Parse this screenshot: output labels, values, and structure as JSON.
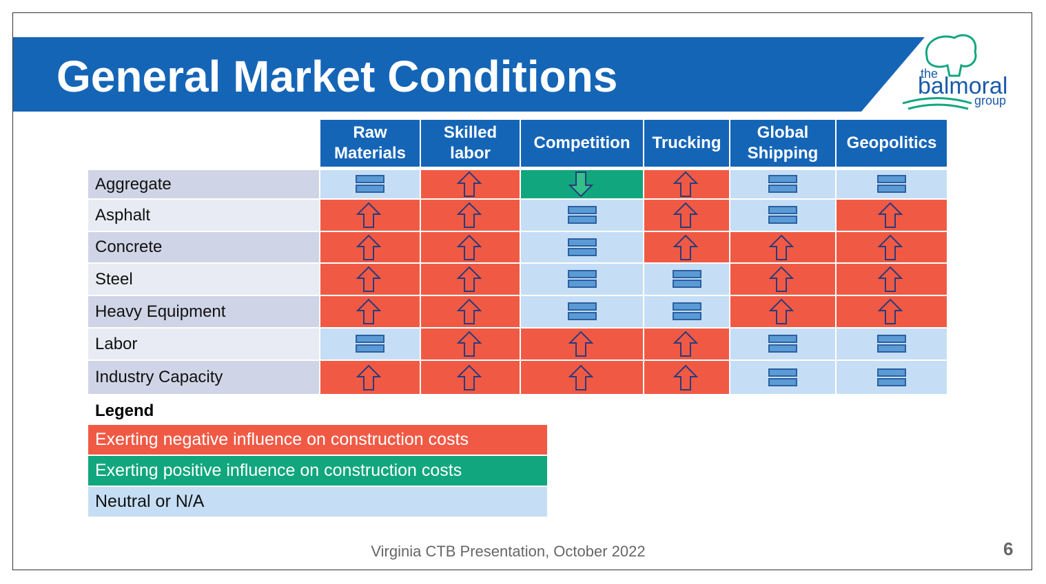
{
  "header": {
    "title": "General Market Conditions",
    "logo": {
      "the": "the",
      "name": "balmoral",
      "group": "group"
    }
  },
  "table": {
    "columns": [
      "Raw Materials",
      "Skilled labor",
      "Competition",
      "Trucking",
      "Global Shipping",
      "Geopolitics"
    ],
    "rows": [
      {
        "label": "Aggregate",
        "cells": [
          2,
          0,
          1,
          0,
          2,
          2
        ]
      },
      {
        "label": "Asphalt",
        "cells": [
          0,
          0,
          2,
          0,
          2,
          0
        ]
      },
      {
        "label": "Concrete",
        "cells": [
          0,
          0,
          2,
          0,
          0,
          0
        ]
      },
      {
        "label": "Steel",
        "cells": [
          0,
          0,
          2,
          2,
          0,
          0
        ]
      },
      {
        "label": "Heavy Equipment",
        "cells": [
          0,
          0,
          2,
          2,
          0,
          0
        ]
      },
      {
        "label": "Labor",
        "cells": [
          2,
          0,
          0,
          0,
          2,
          2
        ]
      },
      {
        "label": "Industry Capacity",
        "cells": [
          0,
          0,
          0,
          0,
          2,
          2
        ]
      }
    ]
  },
  "legend": {
    "title": "Legend",
    "items": [
      {
        "label": "Exerting negative influence on construction costs",
        "color": "#f05a45"
      },
      {
        "label": "Exerting positive influence on construction costs",
        "color": "#11a67e"
      },
      {
        "label": "Neutral or N/A",
        "color": "#c5def5"
      }
    ]
  },
  "footer": {
    "text": "Virginia CTB Presentation, October 2022",
    "page": "6"
  }
}
